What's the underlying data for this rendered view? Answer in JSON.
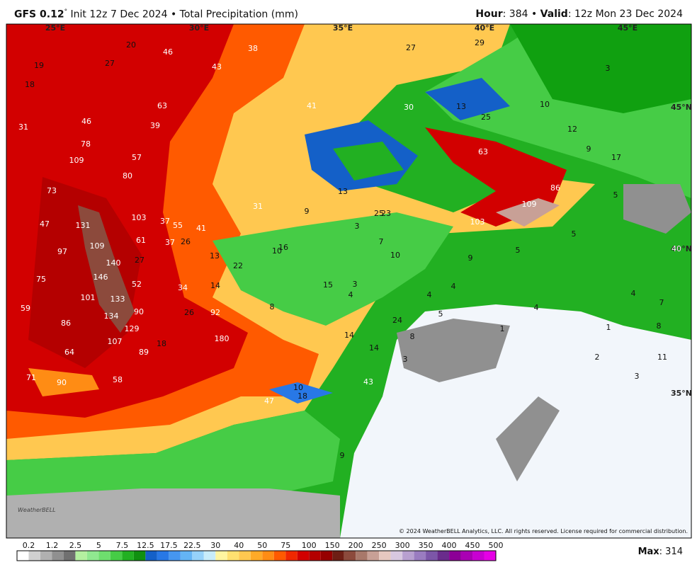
{
  "header": {
    "model": "GFS 0.12",
    "degree": "°",
    "run": "Init 12z 7 Dec 2024 • Total Precipitation (mm)",
    "hour_label": "Hour",
    "hour_text": ": 384 • ",
    "valid_label": "Valid",
    "valid_text": ": 12z Mon 23 Dec 2024"
  },
  "grid_labels": [
    "25°E",
    "30°E",
    "35°E",
    "40°E",
    "45°E",
    "45°N",
    "40°N",
    "35°N"
  ],
  "map_labels": [
    19,
    27,
    20,
    46,
    38,
    43,
    27,
    29,
    3,
    18,
    63,
    41,
    30,
    13,
    10,
    25,
    31,
    46,
    39,
    12,
    9,
    17,
    78,
    109,
    57,
    63,
    80,
    73,
    13,
    86,
    5,
    31,
    9,
    25,
    23,
    109,
    47,
    131,
    103,
    37,
    55,
    41,
    3,
    103,
    5,
    97,
    109,
    61,
    37,
    26,
    10,
    16,
    7,
    10,
    5,
    40,
    13,
    22,
    140,
    27,
    9,
    75,
    146,
    52,
    34,
    14,
    15,
    3,
    4,
    4,
    4,
    101,
    133,
    4,
    59,
    90,
    26,
    92,
    8,
    4,
    7,
    5,
    86,
    134,
    129,
    24,
    8,
    1,
    107,
    180,
    14,
    8,
    1,
    64,
    89,
    18,
    14,
    3,
    2,
    11,
    71,
    90,
    58,
    43,
    10,
    18,
    47,
    3,
    9
  ],
  "logo": "WeatherBELL",
  "copyright": "© 2024 WeatherBELL Analytics, LLC. All rights reserved. License required for commercial distribution.",
  "legend": {
    "labels": [
      "0.2",
      "1.2",
      "2.5",
      "5",
      "7.5",
      "12.5",
      "17.5",
      "22.5",
      "30",
      "40",
      "50",
      "75",
      "100",
      "150",
      "200",
      "250",
      "300",
      "350",
      "400",
      "450",
      "500"
    ],
    "colors": [
      "#ffffff",
      "#d0d0d0",
      "#b0b0b0",
      "#909090",
      "#707070",
      "#b4f0a0",
      "#90e890",
      "#6ede6e",
      "#46cc46",
      "#22b022",
      "#109010",
      "#1460c8",
      "#2878e6",
      "#4696f0",
      "#64b4f5",
      "#96d2fa",
      "#c8ecfa",
      "#fff5a0",
      "#ffe070",
      "#ffc850",
      "#ffaa28",
      "#ff8c14",
      "#ff5a00",
      "#f02800",
      "#d20000",
      "#b40000",
      "#960000",
      "#6e1e14",
      "#8c4a3c",
      "#a8786a",
      "#c8a096",
      "#e6c8c0",
      "#d8c8e0",
      "#b8a0d0",
      "#9a7cc0",
      "#7c56a8",
      "#6a2c8c",
      "#8c0096",
      "#aa00b4",
      "#c800d2",
      "#e600e6"
    ]
  },
  "max_label": "Max",
  "max_text": ": 314"
}
